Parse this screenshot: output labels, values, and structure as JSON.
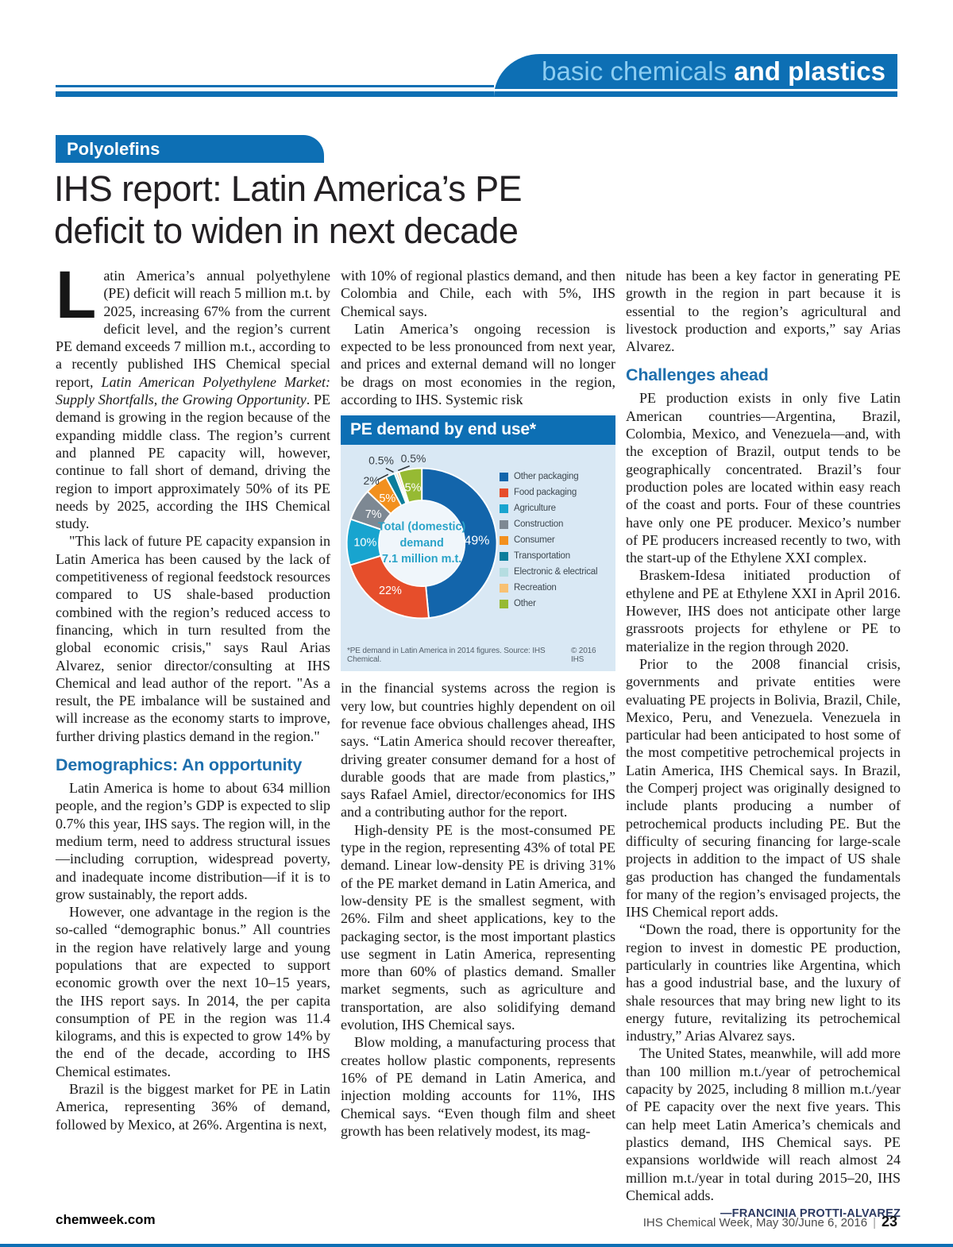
{
  "header": {
    "banner_light": "basic chemicals ",
    "banner_bold": "and plastics"
  },
  "article": {
    "kicker": "Polyolefins",
    "headline_lines": [
      "IHS report: Latin America’s PE",
      "deficit to widen in next decade"
    ],
    "columns": [
      {
        "blocks": [
          {
            "type": "para",
            "dropcap": "L",
            "runs": [
              {
                "t": "atin America’s annual polyethylene (PE) deficit will reach 5 million m.t. by 2025, increasing 67% from the current deficit level, and the region’s current PE demand exceeds 7 million m.t., according to a recently published IHS Chemical special report, "
              },
              {
                "t": "Latin American Polyethylene Market: Supply Shortfalls, the Growing Opportunity",
                "i": true
              },
              {
                "t": ". PE demand is growing in the region because of the expanding middle class. The region’s current and planned PE capacity will, however, continue to fall short of demand, driving the region to import approximately 50% of its PE needs by 2025, according the IHS Chemical study."
              }
            ]
          },
          {
            "type": "para",
            "indent": true,
            "text": "\"This lack of future PE capacity expansion in Latin America has been caused by the lack of competitiveness of regional feedstock resources compared to US shale-based production combined with the region’s reduced access to financing, which in turn resulted from the global economic crisis,\" says Raul Arias Alvarez, senior director/consulting at IHS Chemical and lead author of the report. \"As a result, the PE imbalance will be sustained and will increase as the economy starts to improve, further driving plastics demand in the region.\""
          },
          {
            "type": "heading",
            "text": "Demographics: An opportunity"
          },
          {
            "type": "para",
            "indent": true,
            "text": "Latin America is home to about 634 million people, and the region’s GDP is expected to slip 0.7% this year, IHS says. The region will, in the medium term, need to address structural issues—including corruption, widespread poverty, and inadequate income distribution—if it is to grow sustainably, the report adds."
          },
          {
            "type": "para",
            "indent": true,
            "text": "However, one advantage in the region is the so-called “demographic bonus.” All countries in the region have relatively large and young populations that are expected to support economic growth over the next 10–15 years, the IHS report says. In 2014, the per capita consumption of PE in the region was 11.4 kilograms, and this is expected to grow 14% by the end of the decade, according to IHS Chemical estimates."
          },
          {
            "type": "para",
            "indent": true,
            "text": "Brazil is the biggest market for PE in Latin America, representing 36% of demand, followed by Mexico, at 26%. Argentina is next,"
          }
        ]
      },
      {
        "blocks": [
          {
            "type": "para",
            "text": "with 10% of regional plastics demand, and then Colombia and Chile, each with 5%, IHS Chemical says."
          },
          {
            "type": "para",
            "indent": true,
            "text": "Latin America’s ongoing recession is expected to be less pronounced from next year, and prices and external demand will no longer be drags on most economies in the region, according to IHS. Systemic risk"
          },
          {
            "type": "chart"
          },
          {
            "type": "para",
            "text": "in the financial systems across the region is very low, but countries highly dependent on oil for revenue face obvious challenges ahead, IHS says. “Latin America should recover thereafter, driving greater consumer demand for a host of durable goods that are made from plastics,” says Rafael Amiel, director/economics for IHS and a contributing author for the report."
          },
          {
            "type": "para",
            "indent": true,
            "text": "High-density PE is the most-consumed PE type in the region, representing 43% of total PE demand. Linear low-density PE is driving 31% of the PE market demand in Latin America, and low-density PE is the smallest segment, with 26%. Film and sheet applications, key to the packaging sector, is the most important plastics use segment in Latin America, representing more than 60% of plastics demand. Smaller market segments, such as agriculture and transportation, are also solidifying demand evolution, IHS Chemical says."
          },
          {
            "type": "para",
            "indent": true,
            "text": "Blow molding, a manufacturing process that creates hollow plastic components, represents 16% of PE demand in Latin America, and injection molding accounts for 11%, IHS Chemical says. “Even though film and sheet growth has been relatively modest, its mag-"
          }
        ]
      },
      {
        "blocks": [
          {
            "type": "para",
            "text": "nitude has been a key factor in generating PE growth in the region in part because it is essential to the region’s agricultural and livestock production and exports,” say Arias Alvarez."
          },
          {
            "type": "heading",
            "text": "Challenges ahead"
          },
          {
            "type": "para",
            "indent": true,
            "text": "PE production exists in only five Latin American countries—Argentina, Brazil, Colombia, Mexico, and Venezuela—and, with the exception of Brazil, output tends to be geographically concentrated. Brazil’s four production poles are located within easy reach of the coast and ports. Four of these countries have only one PE producer. Mexico’s number of PE producers increased recently to two, with the start-up of the Ethylene XXI complex."
          },
          {
            "type": "para",
            "indent": true,
            "text": "Braskem-Idesa initiated production of ethylene and PE at Ethylene XXI in April 2016. However, IHS does not anticipate other large grassroots projects for ethylene or PE to materialize in the region through 2020."
          },
          {
            "type": "para",
            "indent": true,
            "text": "Prior to the 2008 financial crisis, governments and private entities were evaluating PE projects in Bolivia, Brazil, Chile, Mexico, Peru, and Venezuela. Venezuela in particular had been anticipated to host some of the most competitive petrochemical projects in Latin America, IHS Chemical says. In Brazil, the Comperj project was originally designed to include plants producing a number of petrochemical products including PE. But the difficulty of securing financing for large-scale projects in addition to the impact of US shale gas production has changed the fundamentals for many of the region’s envisaged projects, the IHS Chemical report adds."
          },
          {
            "type": "para",
            "indent": true,
            "text": "“Down the road, there is opportunity for the region to invest in domestic PE production, particularly in countries like Argentina, which has a good industrial base, and the luxury of shale resources that may bring new light to its energy future, revitalizing its petrochemical industry,” Arias Alvarez says."
          },
          {
            "type": "para",
            "indent": true,
            "text": "The United States, meanwhile, will add more than 100 million m.t./year of petrochemical capacity by 2025, including 8 million m.t./year of PE capacity over the next five years. This can help meet Latin America’s chemicals and plastics demand, IHS Chemical says. PE expansions worldwide will reach almost 24 million m.t./year in total during 2015–20, IHS Chemical adds."
          },
          {
            "type": "byline",
            "text": "—FRANCINIA PROTTI-ALVAREZ"
          }
        ]
      }
    ]
  },
  "chart_data": {
    "type": "pie",
    "donut": true,
    "title": "PE demand by end use*",
    "categories": [
      "Other packaging",
      "Food packaging",
      "Agriculture",
      "Construction",
      "Consumer",
      "Transportation",
      "Electronic & electrical",
      "Recreation",
      "Other"
    ],
    "values": [
      49,
      22,
      10,
      7,
      5,
      2,
      0.5,
      0.5,
      5
    ],
    "labels": [
      "49%",
      "22%",
      "10%",
      "7%",
      "5%",
      "2%",
      "0.5%",
      "0.5%",
      "5%"
    ],
    "colors": [
      "#1365ab",
      "#e64e2b",
      "#18a4cf",
      "#7d8893",
      "#f2901e",
      "#0b7e9c",
      "#b5dde1",
      "#f8c173",
      "#96ba33"
    ],
    "center_label": [
      "Total (domestic)",
      "demand",
      "7.1 million m.t."
    ],
    "center_color": "#29a3c8",
    "footnote": "*PE demand in Latin America in 2014 figures. Source: IHS Chemical.",
    "copyright": "© 2016 IHS",
    "legend_position": "right"
  },
  "footer": {
    "site": "chemweek.com",
    "issue": "IHS Chemical Week, May 30/June 6, 2016",
    "separator": "|",
    "page_number": "23"
  }
}
